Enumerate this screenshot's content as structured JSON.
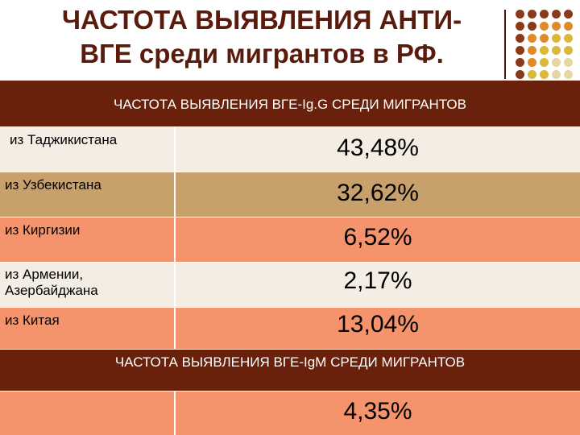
{
  "title": {
    "line1": "ЧАСТОТА  ВЫЯВЛЕНИЯ  АНТИ-",
    "line2": "ВГЕ среди мигрантов в РФ."
  },
  "table": {
    "header_igg": "ЧАСТОТА  ВЫЯВЛЕНИЯ  ВГЕ-Ig.G  СРЕДИ МИГРАНТОВ",
    "rows": [
      {
        "label": "из Таджикистана",
        "value": "43,48%"
      },
      {
        "label": "из Узбекистана",
        "value": "32,62%"
      },
      {
        "label": "из Киргизии",
        "value": "6,52%"
      },
      {
        "label_line1": "из Армении,",
        "label_line2": "Азербайджана",
        "value": "2,17%"
      },
      {
        "label": "из Китая",
        "value": "13,04%"
      }
    ],
    "header_igm": "ЧАСТОТА  ВЫЯВЛЕНИЯ  ВГЕ-IgM  СРЕДИ МИГРАНТОВ",
    "igm_value": "4,35%"
  },
  "colors": {
    "title_text": "#5a1a0c",
    "header_bg": "#6a210c",
    "row_light": "#f3ede4",
    "row_tan": "#c7a06b",
    "row_salmon": "#f5936c",
    "dot_brown": "#8a3a1a",
    "dot_orange": "#e08a2a",
    "dot_gold": "#d9b83a",
    "dot_sand": "#e6d7a0"
  }
}
